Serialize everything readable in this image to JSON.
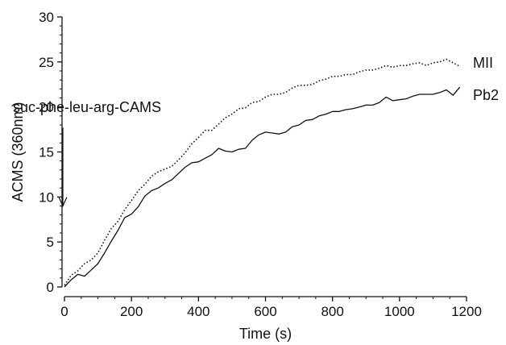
{
  "chart_data": {
    "type": "line",
    "xlabel": "Time (s)",
    "ylabel": "ACMS (360nm)",
    "xlim": [
      0,
      1200
    ],
    "ylim": [
      0,
      30
    ],
    "x_ticks": [
      "0",
      "200",
      "400",
      "600",
      "800",
      "1000",
      "1200"
    ],
    "y_ticks": [
      "0",
      "5",
      "10",
      "15",
      "20",
      "25",
      "30"
    ],
    "grid": false,
    "annotation": {
      "text": "suc-phe-leu-arg-CAMS",
      "arrow_x": 0,
      "arrow_from_y": 17.7,
      "arrow_to_y": 9
    },
    "series": [
      {
        "name": "MII",
        "style": "dotted",
        "color": "#111111",
        "x": [
          0,
          20,
          40,
          60,
          80,
          100,
          120,
          140,
          160,
          180,
          200,
          220,
          240,
          260,
          280,
          300,
          320,
          340,
          360,
          380,
          400,
          420,
          440,
          460,
          480,
          500,
          520,
          540,
          560,
          580,
          600,
          620,
          640,
          660,
          680,
          700,
          720,
          740,
          760,
          780,
          800,
          820,
          840,
          860,
          880,
          900,
          920,
          940,
          960,
          980,
          1000,
          1020,
          1040,
          1060,
          1080,
          1100,
          1120,
          1140,
          1160,
          1180
        ],
        "values": [
          0.2,
          1.3,
          1.8,
          2.6,
          3.0,
          3.8,
          5.2,
          6.5,
          7.3,
          8.6,
          9.6,
          10.7,
          11.4,
          12.3,
          12.8,
          13.1,
          13.4,
          14.1,
          14.9,
          15.9,
          16.6,
          17.4,
          17.4,
          18.1,
          18.8,
          19.2,
          19.8,
          19.9,
          20.5,
          20.6,
          21.1,
          21.4,
          21.4,
          21.6,
          22.1,
          22.4,
          22.4,
          22.5,
          22.9,
          23.1,
          23.4,
          23.4,
          23.6,
          23.6,
          23.9,
          24.1,
          24.1,
          24.3,
          24.6,
          24.4,
          24.6,
          24.6,
          24.8,
          24.9,
          24.6,
          24.9,
          25.0,
          25.3,
          24.9,
          24.5
        ],
        "label": "MII"
      },
      {
        "name": "Pb2",
        "style": "solid",
        "color": "#111111",
        "x": [
          0,
          20,
          40,
          60,
          80,
          100,
          120,
          140,
          160,
          180,
          200,
          220,
          240,
          260,
          280,
          300,
          320,
          340,
          360,
          380,
          400,
          420,
          440,
          460,
          480,
          500,
          520,
          540,
          560,
          580,
          600,
          620,
          640,
          660,
          680,
          700,
          720,
          740,
          760,
          780,
          800,
          820,
          840,
          860,
          880,
          900,
          920,
          940,
          960,
          980,
          1000,
          1020,
          1040,
          1060,
          1080,
          1100,
          1120,
          1140,
          1160,
          1180
        ],
        "values": [
          0.0,
          0.8,
          1.4,
          1.2,
          1.9,
          2.6,
          3.8,
          5.1,
          6.3,
          7.7,
          8.1,
          8.9,
          10.1,
          10.7,
          11.0,
          11.5,
          11.9,
          12.6,
          13.3,
          13.8,
          13.9,
          14.3,
          14.7,
          15.4,
          15.1,
          15.0,
          15.3,
          15.4,
          16.3,
          16.9,
          17.2,
          17.1,
          17.0,
          17.2,
          17.8,
          18.0,
          18.5,
          18.6,
          19.0,
          19.2,
          19.5,
          19.5,
          19.7,
          19.8,
          20.0,
          20.2,
          20.2,
          20.5,
          21.1,
          20.7,
          20.8,
          20.9,
          21.2,
          21.4,
          21.4,
          21.4,
          21.6,
          21.9,
          21.3,
          22.2
        ],
        "label": "Pb2"
      }
    ]
  }
}
